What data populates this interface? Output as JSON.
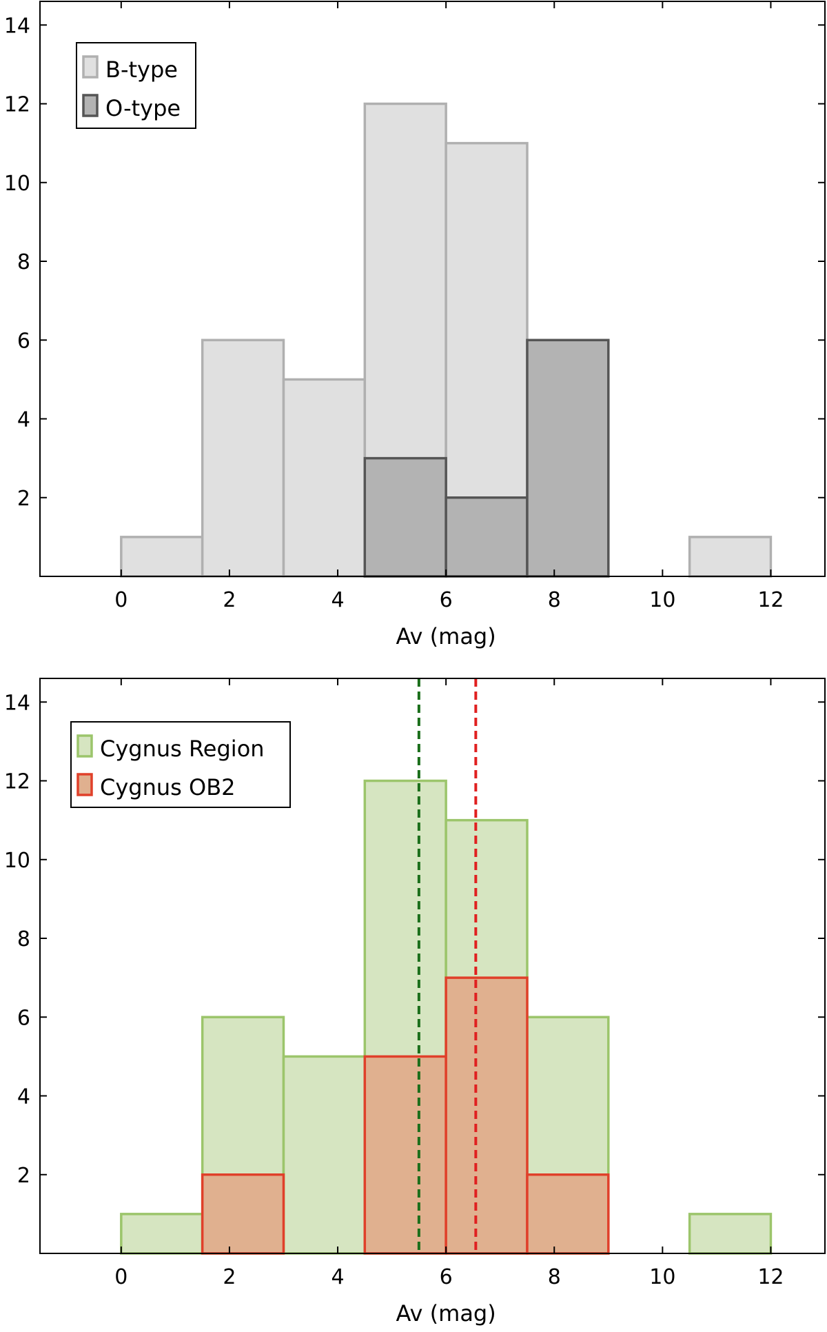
{
  "chart_data": [
    {
      "type": "bar",
      "subtype": "histogram",
      "xlabel": "Av (mag)",
      "ylabel": "",
      "xlim": [
        -1.5,
        13
      ],
      "ylim": [
        0,
        14.6
      ],
      "xticks": [
        0,
        2,
        4,
        6,
        8,
        10,
        12
      ],
      "yticks": [
        2,
        4,
        6,
        8,
        10,
        12,
        14
      ],
      "bin_edges": [
        0,
        1.5,
        3,
        4.5,
        6,
        7.5,
        9,
        10.5,
        12
      ],
      "legend_position": "top-left",
      "series": [
        {
          "name": "B-type",
          "values": [
            1,
            6,
            5,
            12,
            11,
            0,
            0,
            1
          ],
          "fill": "#e0e0e0",
          "stroke": "#b0b0b0"
        },
        {
          "name": "O-type",
          "values": [
            0,
            0,
            0,
            3,
            2,
            6,
            0,
            0
          ],
          "fill": "#b3b3b3",
          "stroke": "#555555"
        }
      ]
    },
    {
      "type": "bar",
      "subtype": "histogram",
      "xlabel": "Av (mag)",
      "ylabel": "",
      "xlim": [
        -1.5,
        13
      ],
      "ylim": [
        0,
        14.6
      ],
      "xticks": [
        0,
        2,
        4,
        6,
        8,
        10,
        12
      ],
      "yticks": [
        2,
        4,
        6,
        8,
        10,
        12,
        14
      ],
      "bin_edges": [
        0,
        1.5,
        3,
        4.5,
        6,
        7.5,
        9,
        10.5,
        12
      ],
      "legend_position": "top-left",
      "series": [
        {
          "name": "Cygnus Region",
          "values": [
            1,
            6,
            5,
            12,
            11,
            6,
            0,
            1
          ],
          "fill": "#d6e5c1",
          "stroke": "#9cc56b"
        },
        {
          "name": "Cygnus OB2",
          "values": [
            0,
            2,
            0,
            5,
            7,
            2,
            0,
            0
          ],
          "fill": "#e0b08f",
          "stroke": "#e0402a"
        }
      ],
      "vlines": [
        {
          "x": 5.5,
          "color": "#1a6e1a"
        },
        {
          "x": 6.55,
          "color": "#e02020"
        }
      ]
    }
  ]
}
